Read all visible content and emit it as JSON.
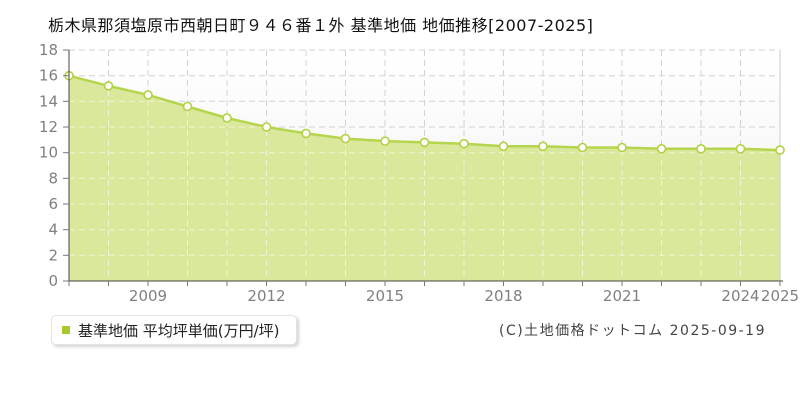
{
  "header": {
    "title": "栃木県那須塩原市西朝日町９４６番１外 基準地価 地価推移[2007-2025]"
  },
  "legend": {
    "label": "基準地価 平均坪単価(万円/坪)",
    "marker_color": "#a6c92f"
  },
  "footer": {
    "copyright": "(C)土地価格ドットコム 2025-09-19"
  },
  "chart_data": {
    "type": "area",
    "title": "栃木県那須塩原市西朝日町９４６番１外 基準地価 地価推移[2007-2025]",
    "x": [
      2007,
      2008,
      2009,
      2010,
      2011,
      2012,
      2013,
      2014,
      2015,
      2016,
      2017,
      2018,
      2019,
      2020,
      2021,
      2022,
      2023,
      2024,
      2025
    ],
    "series": [
      {
        "name": "基準地価 平均坪単価(万円/坪)",
        "values": [
          16.0,
          15.2,
          14.5,
          13.6,
          12.7,
          12.0,
          11.5,
          11.1,
          10.9,
          10.8,
          10.7,
          10.5,
          10.5,
          10.4,
          10.4,
          10.3,
          10.3,
          10.3,
          10.2
        ]
      }
    ],
    "xlabel": "",
    "ylabel": "",
    "ylim": [
      0,
      18
    ],
    "y_tick_step": 2,
    "y_tick_labels": [
      "0",
      "2",
      "4",
      "6",
      "8",
      "10",
      "12",
      "14",
      "16",
      "18"
    ],
    "x_tick_labeled_years": [
      2009,
      2012,
      2015,
      2018,
      2021,
      2024,
      2025
    ],
    "grid": "dashed",
    "legend_position": "bottom-left",
    "colors": {
      "line": "#b5d54e",
      "area_fill": "#d9e89b",
      "marker_fill": "#fffef8",
      "marker_stroke": "#b0d148",
      "grid": "#d2d2d2",
      "grid_over_area": "rgba(255,255,255,0.55)",
      "axis": "#444444",
      "tick": "#777777",
      "tick_label": "#808080",
      "plot_border_right": "#cccccc",
      "plot_bg_top": "#ffffff",
      "plot_bg_bottom": "#f0f0f0"
    }
  }
}
